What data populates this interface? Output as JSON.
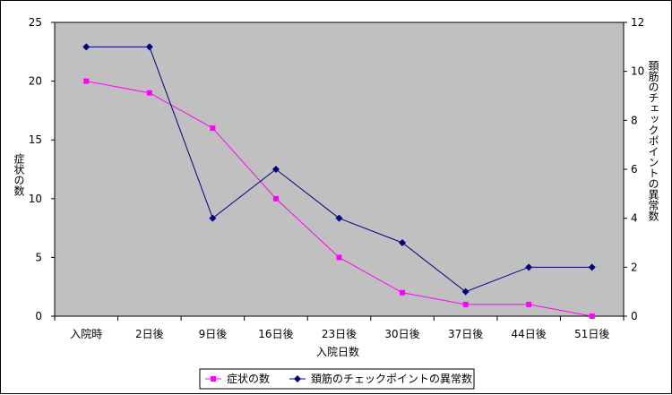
{
  "chart_data": {
    "type": "line",
    "categories": [
      "入院時",
      "2日後",
      "9日後",
      "16日後",
      "23日後",
      "30日後",
      "37日後",
      "44日後",
      "51日後"
    ],
    "xlabel": "入院日数",
    "ylabel_left": "症状の数",
    "ylabel_right": "頚筋のチェックポイントの異常数",
    "ylim_left": [
      0,
      25
    ],
    "yticks_left": [
      0,
      5,
      10,
      15,
      20,
      25
    ],
    "ylim_right": [
      0,
      12
    ],
    "yticks_right": [
      0,
      2,
      4,
      6,
      8,
      10,
      12
    ],
    "plot_background": "#c0c0c0",
    "grid": false,
    "legend_position": "bottom-center",
    "series": [
      {
        "name": "症状の数",
        "axis": "left",
        "color": "#ff00ff",
        "marker": "square",
        "values": [
          20,
          19,
          16,
          10,
          5,
          2,
          1,
          1,
          0
        ]
      },
      {
        "name": "頚筋のチェックポイントの異常数",
        "axis": "right",
        "color": "#000080",
        "marker": "diamond",
        "values": [
          11,
          11,
          4,
          6,
          4,
          3,
          1,
          2,
          2
        ]
      }
    ]
  }
}
